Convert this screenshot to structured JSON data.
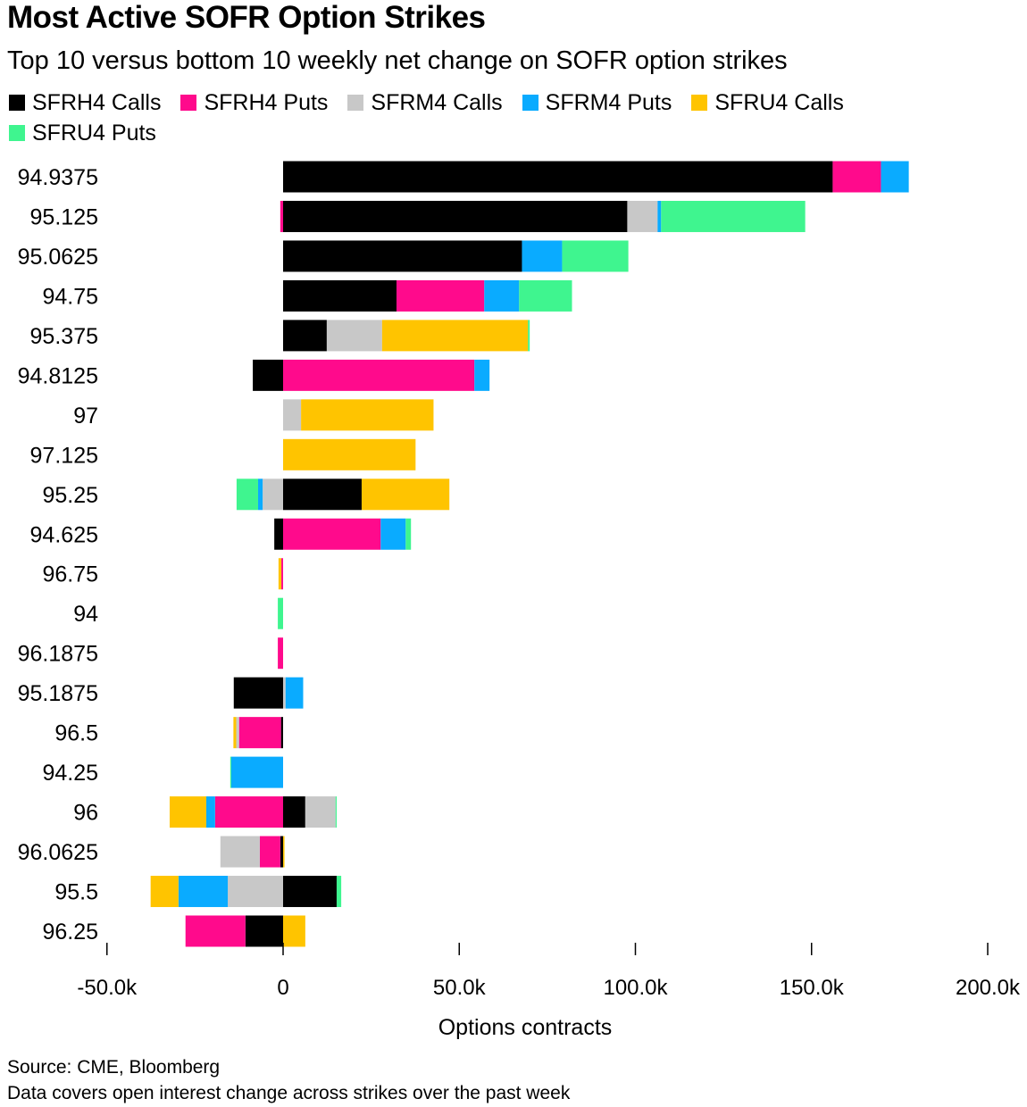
{
  "title": "Most Active SOFR Option Strikes",
  "subtitle": "Top 10 versus bottom 10 weekly net change on SOFR option strikes",
  "source": "Source: CME, Bloomberg",
  "note": "Data covers open interest change across strikes over the past week",
  "chart_data": {
    "type": "bar",
    "orientation": "horizontal",
    "stacked": true,
    "xlabel": "Options contracts",
    "xlim": [
      -50000,
      200000
    ],
    "xticks": [
      -50000,
      0,
      50000,
      100000,
      150000,
      200000
    ],
    "xtick_labels": [
      "-50.0k",
      "0",
      "50.0k",
      "100.0k",
      "150.0k",
      "200.0k"
    ],
    "legend_placement": "top",
    "grid": false,
    "categories": [
      "94.9375",
      "95.125",
      "95.0625",
      "94.75",
      "95.375",
      "94.8125",
      "97",
      "97.125",
      "95.25",
      "94.625",
      "96.75",
      "94",
      "96.1875",
      "95.1875",
      "96.5",
      "94.25",
      "96",
      "96.0625",
      "95.5",
      "96.25"
    ],
    "series": [
      {
        "name": "SFRH4 Calls",
        "color": "#000000",
        "values": [
          156000,
          97700,
          67800,
          32200,
          12400,
          -8600,
          0,
          0,
          22300,
          -2500,
          0,
          0,
          0,
          -14000,
          -600,
          0,
          6300,
          -800,
          15200,
          -10700
        ]
      },
      {
        "name": "SFRH4 Puts",
        "color": "#ff0a8c",
        "values": [
          13700,
          -800,
          0,
          24900,
          0,
          54300,
          0,
          0,
          0,
          27700,
          -500,
          0,
          -1500,
          0,
          -11900,
          0,
          -19300,
          -5800,
          0,
          -17000
        ]
      },
      {
        "name": "SFRM4 Calls",
        "color": "#c8c8c8",
        "values": [
          0,
          8600,
          0,
          0,
          15700,
          0,
          5100,
          0,
          -5800,
          0,
          0,
          0,
          0,
          700,
          -800,
          0,
          8600,
          -11200,
          -15700,
          0
        ]
      },
      {
        "name": "SFRM4 Puts",
        "color": "#0aabff",
        "values": [
          7900,
          1000,
          11400,
          9900,
          0,
          4300,
          0,
          0,
          -1300,
          7100,
          0,
          0,
          0,
          5000,
          0,
          -14700,
          -2500,
          0,
          -14000,
          0
        ]
      },
      {
        "name": "SFRU4 Calls",
        "color": "#ffc400",
        "values": [
          0,
          0,
          0,
          0,
          41400,
          0,
          37600,
          37600,
          24900,
          0,
          -800,
          0,
          0,
          0,
          -800,
          0,
          -10400,
          400,
          -7900,
          6300
        ]
      },
      {
        "name": "SFRU4 Puts",
        "color": "#3ff58f",
        "values": [
          0,
          40900,
          18800,
          15000,
          500,
          0,
          0,
          0,
          -6100,
          1500,
          0,
          -1500,
          0,
          0,
          0,
          -300,
          300,
          0,
          1300,
          0
        ]
      }
    ]
  }
}
